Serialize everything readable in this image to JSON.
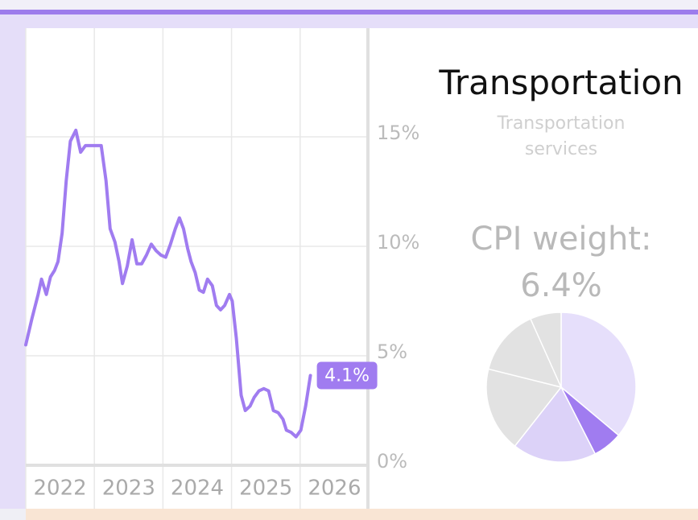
{
  "title": "Transportation",
  "subtitle": "Transportation services",
  "cpi_label": "CPI weight:",
  "cpi_value": "6.4%",
  "chart_data": [
    {
      "type": "line",
      "color": "#a07cf0",
      "grid": true,
      "x": [
        2022.0,
        2022.09,
        2022.18,
        2022.23,
        2022.3,
        2022.36,
        2022.42,
        2022.47,
        2022.53,
        2022.59,
        2022.65,
        2022.73,
        2022.8,
        2022.87,
        2022.94,
        2023.03,
        2023.1,
        2023.17,
        2023.23,
        2023.3,
        2023.36,
        2023.41,
        2023.48,
        2023.55,
        2023.62,
        2023.69,
        2023.76,
        2023.83,
        2023.9,
        2023.97,
        2024.04,
        2024.11,
        2024.18,
        2024.24,
        2024.3,
        2024.36,
        2024.41,
        2024.47,
        2024.53,
        2024.59,
        2024.65,
        2024.72,
        2024.78,
        2024.84,
        2024.9,
        2024.97,
        2025.01,
        2025.07,
        2025.14,
        2025.2,
        2025.27,
        2025.33,
        2025.4,
        2025.47,
        2025.54,
        2025.61,
        2025.68,
        2025.75,
        2025.8,
        2025.87,
        2025.94,
        2026.01,
        2026.08,
        2026.15
      ],
      "values": [
        5.5,
        6.7,
        7.8,
        8.5,
        7.8,
        8.6,
        8.9,
        9.3,
        10.6,
        13.0,
        14.8,
        15.3,
        14.3,
        14.6,
        14.6,
        14.6,
        14.6,
        13.0,
        10.8,
        10.2,
        9.3,
        8.3,
        9.1,
        10.3,
        9.2,
        9.2,
        9.6,
        10.1,
        9.8,
        9.6,
        9.5,
        10.1,
        10.8,
        11.3,
        10.8,
        9.9,
        9.3,
        8.8,
        8.0,
        7.9,
        8.5,
        8.2,
        7.3,
        7.1,
        7.3,
        7.8,
        7.5,
        5.8,
        3.2,
        2.5,
        2.7,
        3.1,
        3.4,
        3.5,
        3.4,
        2.5,
        2.4,
        2.1,
        1.6,
        1.5,
        1.3,
        1.6,
        2.7,
        4.1
      ],
      "value_labels": [
        null,
        null,
        null,
        null,
        null,
        null,
        null,
        null,
        null,
        null,
        null,
        null,
        null,
        null,
        null,
        null,
        null,
        null,
        null,
        null,
        null,
        null,
        null,
        null,
        null,
        null,
        null,
        null,
        null,
        null,
        null,
        null,
        null,
        null,
        null,
        null,
        null,
        null,
        null,
        null,
        null,
        null,
        null,
        null,
        null,
        null,
        null,
        null,
        null,
        null,
        null,
        null,
        null,
        null,
        null,
        null,
        null,
        null,
        null,
        null,
        null,
        null,
        null,
        "4.1%"
      ],
      "xlim": [
        2022,
        2027
      ],
      "xticks": [
        2022,
        2023,
        2024,
        2025,
        2026
      ],
      "ylim": [
        0,
        20
      ],
      "yticks": [
        {
          "value": 0,
          "label": "0%"
        },
        {
          "value": 5,
          "label": "5%"
        },
        {
          "value": 10,
          "label": "10%"
        },
        {
          "value": 15,
          "label": "15%"
        }
      ]
    },
    {
      "type": "pie",
      "categories": [
        null,
        null,
        null,
        null,
        null,
        null
      ],
      "values": [
        36.1,
        6.4,
        18.1,
        18.3,
        14.4,
        6.7
      ],
      "colors": [
        "#e6dffb",
        "#a07cf0",
        "#dcd2f8",
        "#e2e2e2",
        "#e2e2e2",
        "#e2e2e2"
      ]
    }
  ]
}
